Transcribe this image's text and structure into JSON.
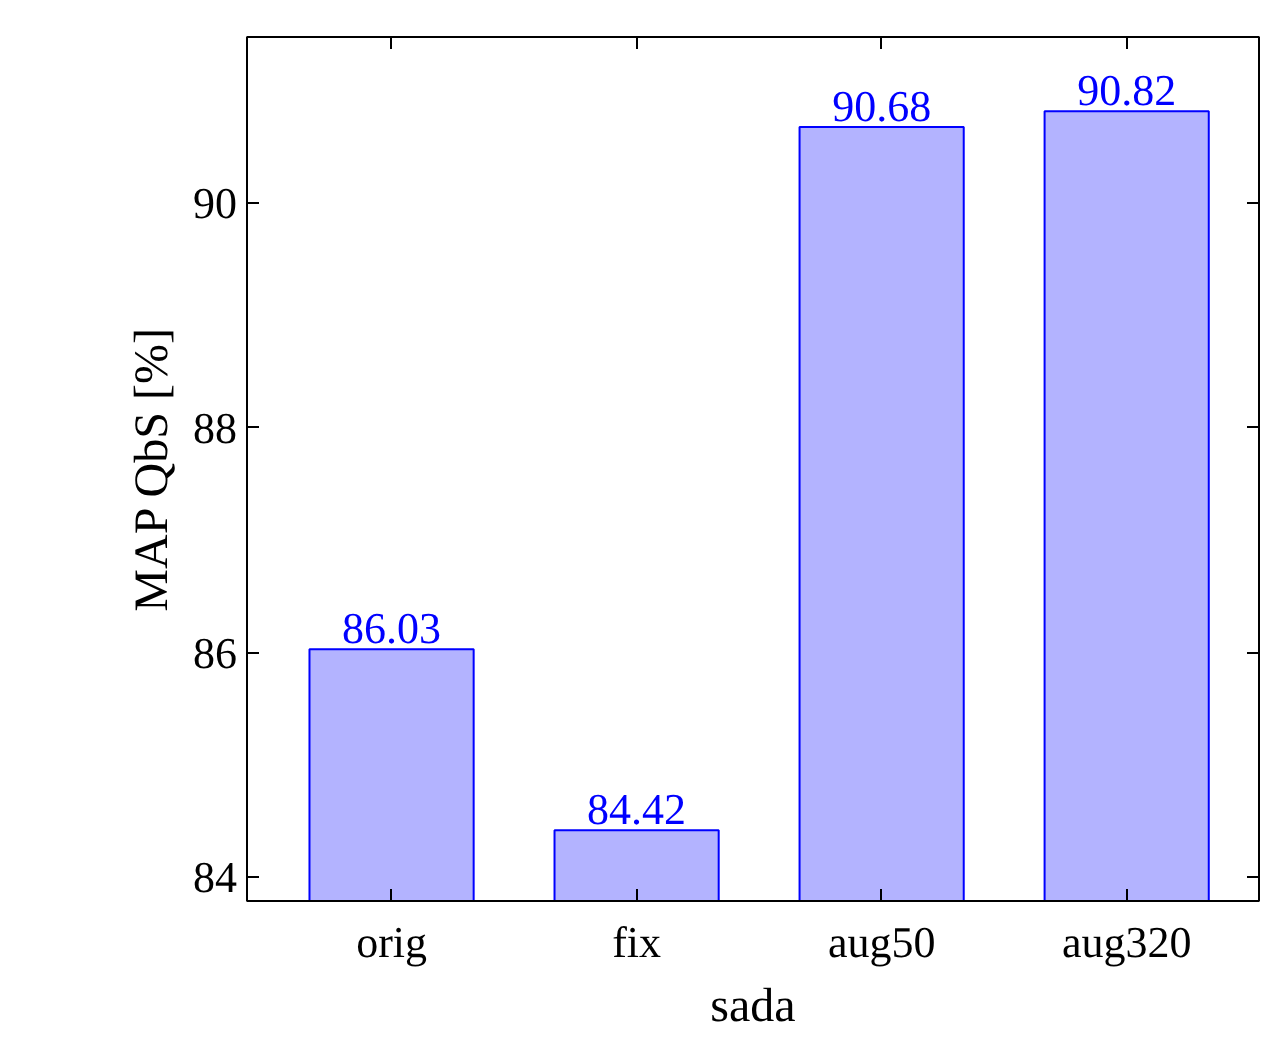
{
  "chart_data": {
    "type": "bar",
    "categories": [
      "orig",
      "fix",
      "aug50",
      "aug320"
    ],
    "values": [
      86.03,
      84.42,
      90.68,
      90.82
    ],
    "color": "#b3b3ff",
    "xlabel": "sada",
    "ylabel": "MAP QbS [%]",
    "ylim": [
      83.79,
      91.48
    ],
    "yticks": [
      84,
      86,
      88,
      90
    ],
    "data_labels": true,
    "grid": false
  }
}
